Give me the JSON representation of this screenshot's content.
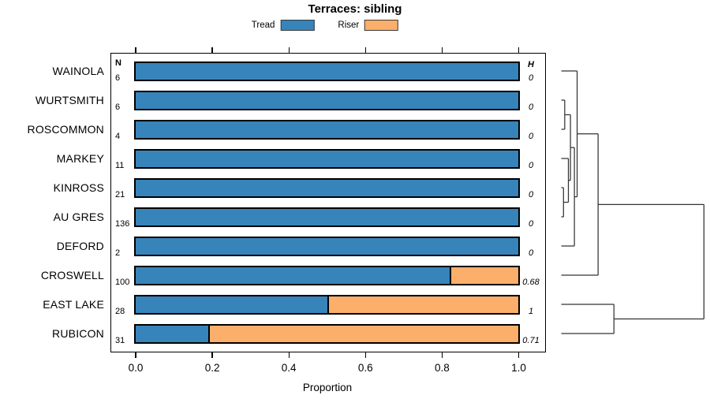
{
  "chart_data": {
    "type": "bar",
    "orientation": "horizontal",
    "stacked": true,
    "title": "Terraces: sibling",
    "xlabel": "Proportion",
    "xlim": [
      0,
      1
    ],
    "x_ticks": [
      "0.0",
      "0.2",
      "0.4",
      "0.6",
      "0.8",
      "1.0"
    ],
    "grid": false,
    "legend_position": "top-center",
    "legend": [
      {
        "label": "Tread",
        "color": "#3784bb"
      },
      {
        "label": "Riser",
        "color": "#fcae6b"
      }
    ],
    "columns": {
      "n_header": "N",
      "h_header": "H"
    },
    "categories": [
      "WAINOLA",
      "WURTSMITH",
      "ROSCOMMON",
      "MARKEY",
      "KINROSS",
      "AU GRES",
      "DEFORD",
      "CROSWELL",
      "EAST LAKE",
      "RUBICON"
    ],
    "series": [
      {
        "name": "Tread",
        "values": [
          1.0,
          1.0,
          1.0,
          1.0,
          1.0,
          1.0,
          1.0,
          0.82,
          0.5,
          0.19
        ]
      },
      {
        "name": "Riser",
        "values": [
          0.0,
          0.0,
          0.0,
          0.0,
          0.0,
          0.0,
          0.0,
          0.18,
          0.5,
          0.81
        ]
      }
    ],
    "n_values": [
      "6",
      "6",
      "4",
      "11",
      "21",
      "136",
      "2",
      "100",
      "28",
      "31"
    ],
    "h_values": [
      "0",
      "0",
      "0",
      "0",
      "0",
      "0",
      "0",
      "0.68",
      "1",
      "0.71"
    ],
    "dendrogram": {
      "side": "right",
      "merges": [
        {
          "id": "m2",
          "a": "KINROSS",
          "b": "AU GRES",
          "height": 0.0155
        },
        {
          "id": "m1",
          "a": "WURTSMITH",
          "b": "ROSCOMMON",
          "height": 0.024
        },
        {
          "id": "m3",
          "a": "MARKEY",
          "b": "m2",
          "height": 0.0498
        },
        {
          "id": "m4",
          "a": "m1",
          "b": "m3",
          "height": 0.0642
        },
        {
          "id": "m5",
          "a": "m4",
          "b": "DEFORD",
          "height": 0.0919
        },
        {
          "id": "m6",
          "a": "WAINOLA",
          "b": "m5",
          "height": 0.111
        },
        {
          "id": "m7",
          "a": "m6",
          "b": "CROSWELL",
          "height": 0.258
        },
        {
          "id": "m8",
          "a": "EAST LAKE",
          "b": "RUBICON",
          "height": 0.369
        },
        {
          "id": "root",
          "a": "m7",
          "b": "m8",
          "height": 1.0
        }
      ]
    }
  },
  "colors": {
    "tread": "#3784bb",
    "riser": "#fcae6b",
    "bar_border": "#000000",
    "plot_border": "#000000",
    "dendrogram_line": "#333333",
    "text": "#000000",
    "background": "#ffffff"
  }
}
